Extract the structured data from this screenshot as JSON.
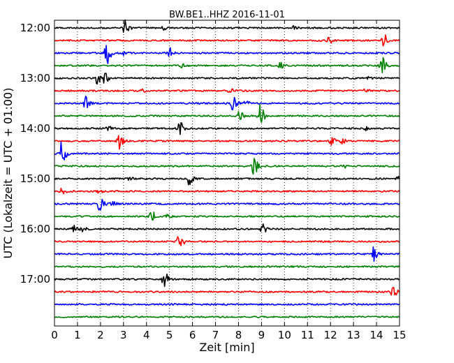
{
  "chart_data": {
    "type": "line",
    "plot_style": "dayplot (seismogram helicorder)",
    "title": "BW.BE1..HHZ 2016-11-01",
    "xlabel": "Zeit  [min]",
    "ylabel": "UTC (Lokalzeit = UTC + 01:00)",
    "xlim": [
      0,
      15
    ],
    "x_ticks": [
      0,
      1,
      2,
      3,
      4,
      5,
      6,
      7,
      8,
      9,
      10,
      11,
      12,
      13,
      14,
      15
    ],
    "x_tick_labels": [
      "0",
      "1",
      "2",
      "3",
      "4",
      "5",
      "6",
      "7",
      "8",
      "9",
      "10",
      "11",
      "12",
      "13",
      "14",
      "15"
    ],
    "y_tick_labels": [
      "12:00",
      "13:00",
      "14:00",
      "15:00",
      "16:00",
      "17:00"
    ],
    "y_tick_rows": [
      0,
      4,
      8,
      12,
      16,
      20
    ],
    "x_grid": "dotted vertical lines at each minute",
    "colors": [
      "#000000",
      "#ff0000",
      "#0000ff",
      "#008000"
    ],
    "row_interval_minutes": 15,
    "series": [
      {
        "start": "12:00",
        "events": [
          {
            "t": 3.05,
            "a": 0.6
          },
          {
            "t": 4.75,
            "a": 0.2
          },
          {
            "t": 10.4,
            "a": 0.12
          }
        ]
      },
      {
        "start": "12:15",
        "events": [
          {
            "t": 11.9,
            "a": 0.25
          },
          {
            "t": 14.3,
            "a": 0.5
          }
        ]
      },
      {
        "start": "12:30",
        "events": [
          {
            "t": 2.25,
            "a": 1.0
          },
          {
            "t": 2.9,
            "a": 0.2
          },
          {
            "t": 5.0,
            "a": 0.55
          }
        ]
      },
      {
        "start": "12:45",
        "events": [
          {
            "t": 5.5,
            "a": 0.15
          },
          {
            "t": 9.8,
            "a": 0.25
          },
          {
            "t": 14.2,
            "a": 0.7
          }
        ]
      },
      {
        "start": "13:00",
        "events": [
          {
            "t": 1.85,
            "a": 0.45
          },
          {
            "t": 2.15,
            "a": 0.4
          },
          {
            "t": 13.6,
            "a": 0.12
          }
        ]
      },
      {
        "start": "13:15",
        "events": [
          {
            "t": 3.8,
            "a": 0.1
          },
          {
            "t": 7.6,
            "a": 0.15
          },
          {
            "t": 13.5,
            "a": 0.12
          }
        ]
      },
      {
        "start": "13:30",
        "events": [
          {
            "t": 1.35,
            "a": 0.55
          },
          {
            "t": 7.75,
            "a": 0.6
          },
          {
            "t": 8.3,
            "a": 0.15
          }
        ]
      },
      {
        "start": "13:45",
        "events": [
          {
            "t": 8.0,
            "a": 0.45
          },
          {
            "t": 8.9,
            "a": 0.95
          }
        ]
      },
      {
        "start": "14:00",
        "events": [
          {
            "t": 2.3,
            "a": 0.15
          },
          {
            "t": 5.4,
            "a": 0.7
          },
          {
            "t": 13.5,
            "a": 0.15
          }
        ]
      },
      {
        "start": "14:15",
        "events": [
          {
            "t": 2.8,
            "a": 0.7
          },
          {
            "t": 12.0,
            "a": 0.35
          },
          {
            "t": 12.5,
            "a": 0.2
          }
        ]
      },
      {
        "start": "14:30",
        "events": [
          {
            "t": 0.3,
            "a": 0.95
          }
        ]
      },
      {
        "start": "14:45",
        "events": [
          {
            "t": 8.65,
            "a": 0.75
          },
          {
            "t": 12.5,
            "a": 0.15
          }
        ]
      },
      {
        "start": "15:00",
        "events": [
          {
            "t": 5.85,
            "a": 0.6
          },
          {
            "t": 3.2,
            "a": 0.12
          },
          {
            "t": 14.95,
            "a": 0.2
          }
        ]
      },
      {
        "start": "15:15",
        "events": [
          {
            "t": 0.3,
            "a": 0.2
          },
          {
            "t": 1.9,
            "a": 0.12
          }
        ]
      },
      {
        "start": "15:30",
        "events": [
          {
            "t": 1.95,
            "a": 0.55
          },
          {
            "t": 2.5,
            "a": 0.15
          }
        ]
      },
      {
        "start": "15:45",
        "events": [
          {
            "t": 4.15,
            "a": 0.6
          },
          {
            "t": 4.9,
            "a": 0.12
          }
        ]
      },
      {
        "start": "16:00",
        "events": [
          {
            "t": 0.8,
            "a": 0.3
          },
          {
            "t": 1.2,
            "a": 0.2
          },
          {
            "t": 9.0,
            "a": 0.45
          }
        ]
      },
      {
        "start": "16:15",
        "events": [
          {
            "t": 5.4,
            "a": 0.65
          }
        ]
      },
      {
        "start": "16:30",
        "events": [
          {
            "t": 13.85,
            "a": 0.75
          }
        ]
      },
      {
        "start": "16:45",
        "events": []
      },
      {
        "start": "17:00",
        "events": [
          {
            "t": 4.75,
            "a": 0.6
          }
        ]
      },
      {
        "start": "17:15",
        "events": [
          {
            "t": 14.7,
            "a": 0.45
          }
        ]
      },
      {
        "start": "17:30",
        "events": []
      },
      {
        "start": "17:45",
        "events": []
      }
    ]
  }
}
